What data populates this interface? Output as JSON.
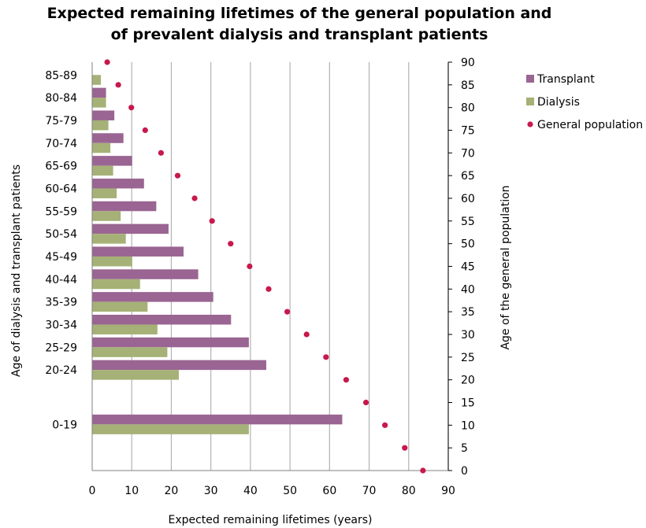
{
  "chart_data": {
    "type": "bar",
    "orientation": "horizontal",
    "title_line1": "Expected remaining lifetimes of the general population  and",
    "title_line2": "of prevalent dialysis and transplant patients",
    "xlabel": "Expected remaining lifetimes (years)",
    "ylabel_left": "Age of dialysis  and transplant patients",
    "ylabel_right": "Age of the general population",
    "xlim": [
      0,
      90
    ],
    "x_ticks": [
      0,
      10,
      20,
      30,
      40,
      50,
      60,
      70,
      80,
      90
    ],
    "right_ylim": [
      0,
      90
    ],
    "right_ticks": [
      0,
      5,
      10,
      15,
      20,
      25,
      30,
      35,
      40,
      45,
      50,
      55,
      60,
      65,
      70,
      75,
      80,
      85,
      90
    ],
    "grid": "vertical",
    "legend_position": "right",
    "categories": [
      {
        "label": "0-19",
        "age_center": 10
      },
      {
        "label": "20-24",
        "age_center": 22
      },
      {
        "label": "25-29",
        "age_center": 27
      },
      {
        "label": "30-34",
        "age_center": 32
      },
      {
        "label": "35-39",
        "age_center": 37
      },
      {
        "label": "40-44",
        "age_center": 42
      },
      {
        "label": "45-49",
        "age_center": 47
      },
      {
        "label": "50-54",
        "age_center": 52
      },
      {
        "label": "55-59",
        "age_center": 57
      },
      {
        "label": "60-64",
        "age_center": 62
      },
      {
        "label": "65-69",
        "age_center": 67
      },
      {
        "label": "70-74",
        "age_center": 72
      },
      {
        "label": "75-79",
        "age_center": 77
      },
      {
        "label": "80-84",
        "age_center": 82
      },
      {
        "label": "85-89",
        "age_center": 87
      }
    ],
    "series": [
      {
        "name": "Transplant",
        "color": "#9a6592",
        "values": [
          63.2,
          44.0,
          39.6,
          35.1,
          30.6,
          26.8,
          23.1,
          19.3,
          16.2,
          13.1,
          10.1,
          7.9,
          5.6,
          3.5,
          null
        ]
      },
      {
        "name": "Dialysis",
        "color": "#a5b176",
        "values": [
          39.6,
          21.9,
          19.0,
          16.5,
          14.0,
          12.1,
          10.1,
          8.5,
          7.2,
          6.2,
          5.3,
          4.6,
          4.1,
          3.5,
          2.2
        ]
      },
      {
        "name": "General population",
        "color": "#c8184c",
        "points": [
          {
            "x": 83.6,
            "age": 0
          },
          {
            "x": 79.0,
            "age": 5
          },
          {
            "x": 74.0,
            "age": 10
          },
          {
            "x": 69.2,
            "age": 15
          },
          {
            "x": 64.2,
            "age": 20
          },
          {
            "x": 59.1,
            "age": 25
          },
          {
            "x": 54.2,
            "age": 30
          },
          {
            "x": 49.3,
            "age": 35
          },
          {
            "x": 44.6,
            "age": 40
          },
          {
            "x": 39.8,
            "age": 45
          },
          {
            "x": 35.0,
            "age": 50
          },
          {
            "x": 30.3,
            "age": 55
          },
          {
            "x": 25.9,
            "age": 60
          },
          {
            "x": 21.6,
            "age": 65
          },
          {
            "x": 17.4,
            "age": 70
          },
          {
            "x": 13.4,
            "age": 75
          },
          {
            "x": 9.9,
            "age": 80
          },
          {
            "x": 6.6,
            "age": 85
          },
          {
            "x": 3.8,
            "age": 90
          }
        ]
      }
    ]
  }
}
